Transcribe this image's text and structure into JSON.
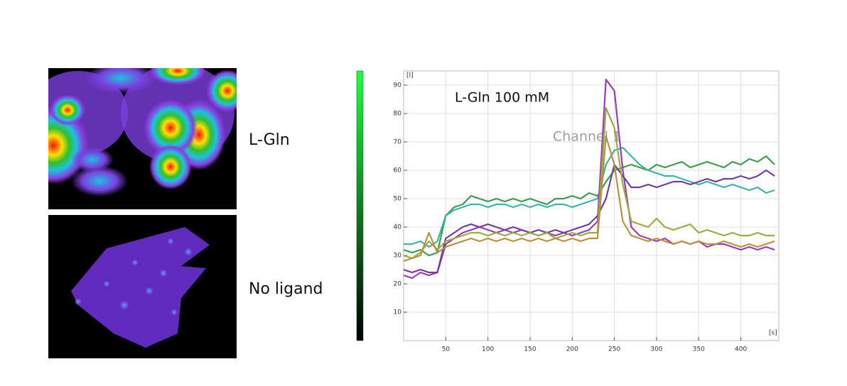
{
  "image_labels": [
    "L-Gln",
    "No ligand"
  ],
  "chart_data": {
    "type": "line",
    "title": "L-Gln 100 mM",
    "annotation": "Channel 1",
    "y_label": "[I]",
    "x_label": "[s]",
    "x": [
      0,
      10,
      20,
      30,
      40,
      50,
      60,
      70,
      80,
      90,
      100,
      110,
      120,
      130,
      140,
      150,
      160,
      170,
      180,
      190,
      200,
      210,
      220,
      230,
      240,
      250,
      260,
      270,
      280,
      290,
      300,
      310,
      320,
      330,
      340,
      350,
      360,
      370,
      380,
      390,
      400,
      410,
      420,
      430,
      440
    ],
    "series": [
      {
        "color": "#3d9b4d",
        "values": [
          32,
          31,
          32,
          30,
          31,
          44,
          47,
          48,
          51,
          50,
          49,
          50,
          49,
          50,
          49,
          50,
          49,
          48,
          50,
          50,
          51,
          50,
          52,
          51,
          56,
          60,
          61,
          62,
          61,
          60,
          62,
          61,
          62,
          63,
          61,
          62,
          63,
          62,
          61,
          63,
          62,
          64,
          63,
          65,
          62
        ]
      },
      {
        "color": "#3ab3ad",
        "values": [
          34,
          34,
          35,
          33,
          35,
          44,
          46,
          47,
          48,
          48,
          47,
          48,
          48,
          47,
          48,
          47,
          48,
          47,
          48,
          48,
          47,
          48,
          49,
          50,
          62,
          67,
          68,
          65,
          62,
          60,
          59,
          58,
          58,
          57,
          56,
          55,
          56,
          55,
          54,
          55,
          54,
          53,
          54,
          52,
          53
        ]
      },
      {
        "color": "#9a3db5",
        "values": [
          23,
          22,
          24,
          23,
          24,
          34,
          36,
          38,
          39,
          40,
          39,
          38,
          39,
          38,
          39,
          38,
          37,
          38,
          37,
          38,
          37,
          38,
          39,
          42,
          92,
          88,
          60,
          40,
          37,
          36,
          35,
          36,
          34,
          35,
          34,
          35,
          33,
          34,
          34,
          33,
          32,
          33,
          32,
          33,
          32
        ]
      },
      {
        "color": "#6f3d9e",
        "values": [
          25,
          24,
          25,
          24,
          24,
          36,
          38,
          40,
          41,
          40,
          41,
          40,
          39,
          40,
          39,
          38,
          39,
          38,
          39,
          38,
          39,
          40,
          41,
          44,
          50,
          62,
          58,
          54,
          54,
          55,
          54,
          55,
          56,
          56,
          55,
          56,
          57,
          56,
          57,
          57,
          58,
          57,
          58,
          60,
          58
        ]
      },
      {
        "color": "#9bab3d",
        "values": [
          30,
          29,
          31,
          35,
          32,
          35,
          36,
          37,
          38,
          38,
          37,
          38,
          37,
          38,
          37,
          38,
          37,
          38,
          36,
          37,
          38,
          37,
          38,
          38,
          82,
          75,
          55,
          42,
          41,
          40,
          43,
          40,
          39,
          40,
          41,
          38,
          39,
          38,
          37,
          38,
          37,
          37,
          38,
          37,
          37
        ]
      },
      {
        "color": "#b8923a",
        "values": [
          28,
          29,
          30,
          38,
          31,
          33,
          34,
          35,
          36,
          35,
          36,
          35,
          36,
          35,
          36,
          35,
          36,
          35,
          36,
          35,
          36,
          35,
          36,
          36,
          72,
          62,
          42,
          37,
          36,
          35,
          36,
          35,
          34,
          35,
          34,
          35,
          34,
          34,
          35,
          34,
          33,
          34,
          33,
          34,
          35
        ]
      }
    ],
    "xlim": [
      0,
      445
    ],
    "ylim": [
      0,
      95
    ],
    "xticks": [
      50,
      100,
      150,
      200,
      250,
      300,
      350,
      400
    ],
    "yticks": [
      10,
      20,
      30,
      40,
      50,
      60,
      70,
      80,
      90
    ],
    "grid": true
  }
}
